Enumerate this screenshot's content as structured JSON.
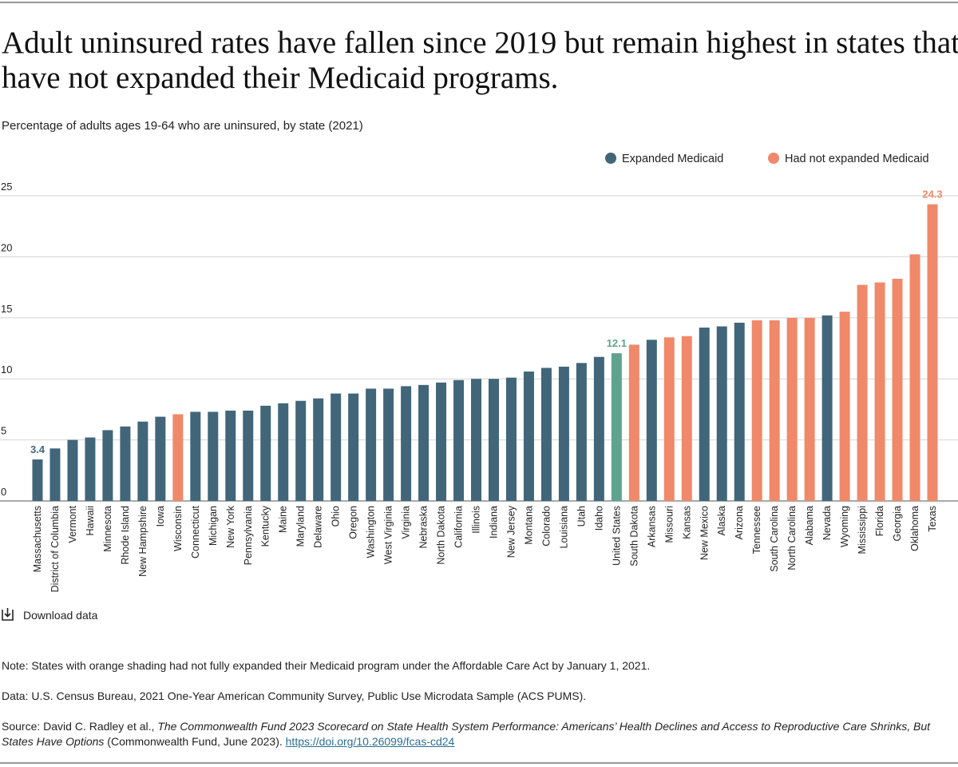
{
  "title_lines": [
    "Adult uninsured rates have fallen since 2019 but remain highest in states that",
    "have not expanded their Medicaid programs."
  ],
  "subtitle": "Percentage of adults ages 19-64 who are uninsured, by state (2021)",
  "chart_data": {
    "type": "bar",
    "categories": [
      "Massachusetts",
      "District of Columbia",
      "Vermont",
      "Hawaii",
      "Minnesota",
      "Rhode Island",
      "New Hampshire",
      "Iowa",
      "Wisconsin",
      "Connecticut",
      "Michigan",
      "New York",
      "Pennsylvania",
      "Kentucky",
      "Maine",
      "Maryland",
      "Delaware",
      "Ohio",
      "Oregon",
      "Washington",
      "West Virginia",
      "Virginia",
      "Nebraska",
      "North Dakota",
      "California",
      "Illinois",
      "Indiana",
      "New Jersey",
      "Montana",
      "Colorado",
      "Louisiana",
      "Utah",
      "Idaho",
      "United States",
      "South Dakota",
      "Arkansas",
      "Missouri",
      "Kansas",
      "New Mexico",
      "Alaska",
      "Arizona",
      "Tennessee",
      "South Carolina",
      "North Carolina",
      "Alabama",
      "Nevada",
      "Wyoming",
      "Mississippi",
      "Florida",
      "Georgia",
      "Oklahoma",
      "Texas"
    ],
    "values": [
      3.4,
      4.3,
      5.0,
      5.2,
      5.8,
      6.1,
      6.5,
      6.9,
      7.1,
      7.3,
      7.3,
      7.4,
      7.4,
      7.8,
      8.0,
      8.2,
      8.4,
      8.8,
      8.8,
      9.2,
      9.2,
      9.4,
      9.5,
      9.7,
      9.9,
      10.0,
      10.0,
      10.1,
      10.6,
      10.9,
      11.0,
      11.3,
      11.8,
      12.1,
      12.8,
      13.2,
      13.4,
      13.5,
      14.2,
      14.3,
      14.6,
      14.8,
      14.8,
      15.0,
      15.0,
      15.2,
      15.5,
      17.7,
      17.9,
      18.2,
      20.2,
      24.3
    ],
    "value_labels": [
      "3.4",
      null,
      null,
      null,
      null,
      null,
      null,
      null,
      null,
      null,
      null,
      null,
      null,
      null,
      null,
      null,
      null,
      null,
      null,
      null,
      null,
      null,
      null,
      null,
      null,
      null,
      null,
      null,
      null,
      null,
      null,
      null,
      null,
      "12.1",
      null,
      null,
      null,
      null,
      null,
      null,
      null,
      null,
      null,
      null,
      null,
      null,
      null,
      null,
      null,
      null,
      null,
      "24.3"
    ],
    "colors": [
      "#41667a",
      "#41667a",
      "#41667a",
      "#41667a",
      "#41667a",
      "#41667a",
      "#41667a",
      "#41667a",
      "#f0886a",
      "#41667a",
      "#41667a",
      "#41667a",
      "#41667a",
      "#41667a",
      "#41667a",
      "#41667a",
      "#41667a",
      "#41667a",
      "#41667a",
      "#41667a",
      "#41667a",
      "#41667a",
      "#41667a",
      "#41667a",
      "#41667a",
      "#41667a",
      "#41667a",
      "#41667a",
      "#41667a",
      "#41667a",
      "#41667a",
      "#41667a",
      "#41667a",
      "#5fa38f",
      "#f0886a",
      "#41667a",
      "#f0886a",
      "#f0886a",
      "#41667a",
      "#41667a",
      "#41667a",
      "#f0886a",
      "#f0886a",
      "#f0886a",
      "#f0886a",
      "#41667a",
      "#f0886a",
      "#f0886a",
      "#f0886a",
      "#f0886a",
      "#f0886a",
      "#f0886a"
    ],
    "legend": [
      {
        "name": "Expanded Medicaid",
        "color": "#41667a"
      },
      {
        "name": "Had not expanded Medicaid",
        "color": "#f0886a"
      }
    ],
    "ylim": [
      0,
      25
    ],
    "yticks": [
      0,
      5,
      10,
      15,
      20,
      25
    ],
    "grid": true
  },
  "download": "Download data",
  "note": "Note: States with orange shading had not fully expanded their Medicaid program under the Affordable Care Act by January 1, 2021.",
  "data_source": "Data: U.S. Census Bureau, 2021 One-Year American Community Survey, Public Use Microdata Sample (ACS PUMS).",
  "source": {
    "prefix": "Source: David C. Radley et al., ",
    "work": "The Commonwealth Fund 2023 Scorecard on State Health System Performance: Americans’ Health Declines and Access to Reproductive Care Shrinks, But States Have Options",
    "suffix": " (Commonwealth Fund, June 2023). ",
    "link": "https://doi.org/10.26099/fcas-cd24"
  }
}
